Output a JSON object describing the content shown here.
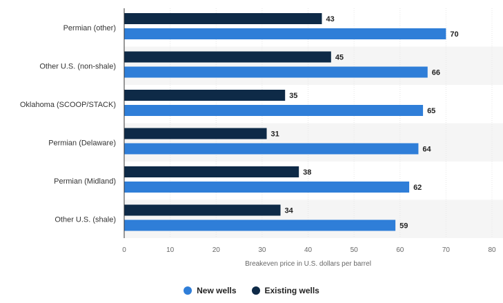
{
  "chart_data": {
    "type": "bar",
    "orientation": "horizontal",
    "categories": [
      "Permian (other)",
      "Other U.S. (non-shale)",
      "Oklahoma (SCOOP/STACK)",
      "Permian (Delaware)",
      "Permian (Midland)",
      "Other U.S. (shale)"
    ],
    "series": [
      {
        "name": "Existing wells",
        "color": "#0e2a47",
        "values": [
          43,
          45,
          35,
          31,
          38,
          34
        ]
      },
      {
        "name": "New wells",
        "color": "#2f7ed8",
        "values": [
          70,
          66,
          65,
          64,
          62,
          59
        ]
      }
    ],
    "xlabel": "Breakeven price in U.S. dollars per barrel",
    "xlim": [
      0,
      80
    ],
    "ticks": [
      "0",
      "10",
      "20",
      "30",
      "40",
      "50",
      "60",
      "70",
      "80"
    ],
    "legend": [
      {
        "label": "New wells",
        "color": "#2f7ed8"
      },
      {
        "label": "Existing wells",
        "color": "#0e2a47"
      }
    ],
    "grid": true,
    "legend_position": "bottom"
  }
}
